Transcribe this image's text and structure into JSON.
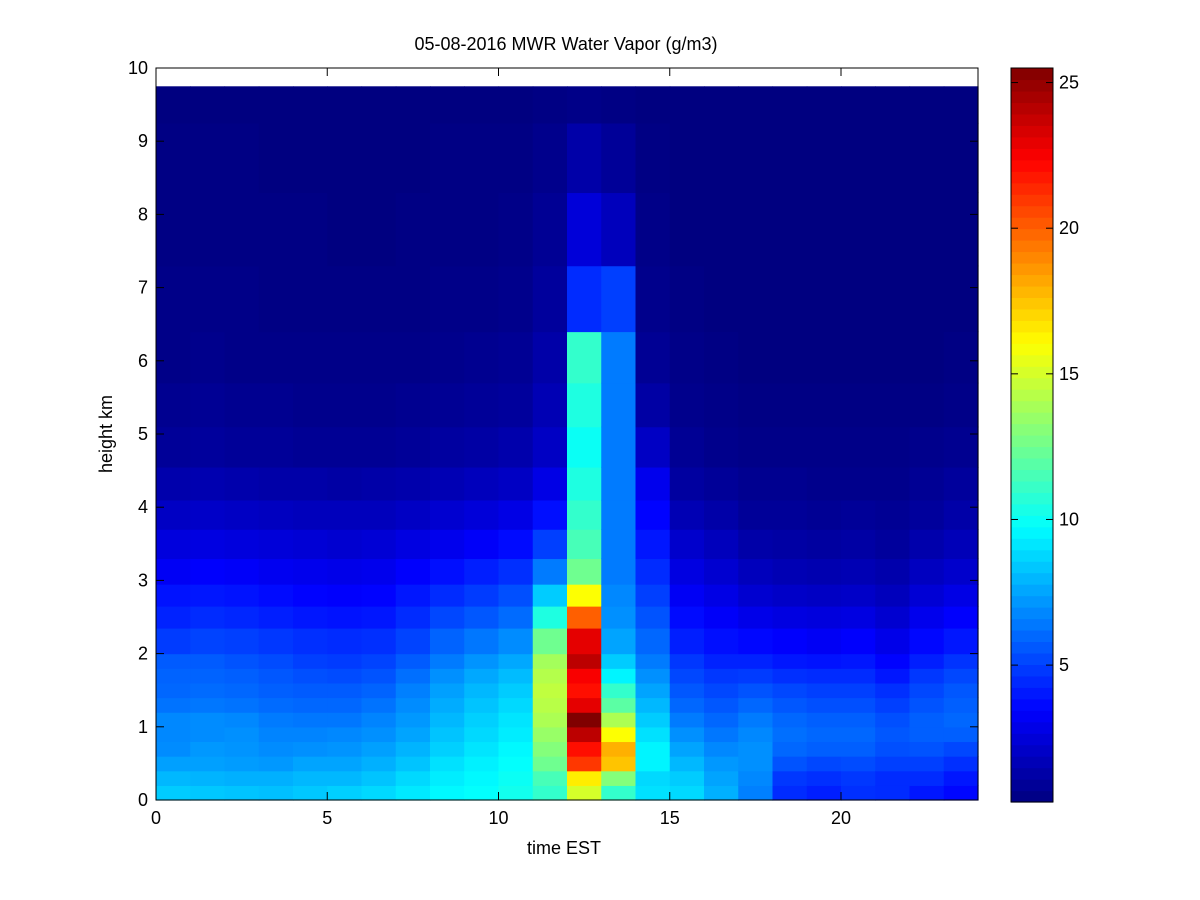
{
  "chart_data": {
    "type": "heatmap",
    "title": "05-08-2016 MWR Water Vapor (g/m3)",
    "xlabel": "time EST",
    "ylabel": "height km",
    "xlim": [
      0,
      24
    ],
    "ylim": [
      0,
      10
    ],
    "xticks": [
      0,
      5,
      10,
      15,
      20
    ],
    "yticks": [
      0,
      1,
      2,
      3,
      4,
      5,
      6,
      7,
      8,
      9,
      10
    ],
    "colormap": "jet",
    "colorbar": {
      "min": 0.3,
      "max": 25.5,
      "ticks": [
        5,
        10,
        15,
        20,
        25
      ]
    },
    "time_bins": [
      0,
      1,
      2,
      3,
      4,
      5,
      6,
      7,
      8,
      9,
      10,
      11,
      12,
      13,
      14,
      15,
      16,
      17,
      18,
      19,
      20,
      21,
      22,
      23
    ],
    "height_bins": [
      0.1,
      0.3,
      0.5,
      0.7,
      0.9,
      1.1,
      1.3,
      1.5,
      1.7,
      1.9,
      2.2,
      2.5,
      2.8,
      3.1,
      3.5,
      3.9,
      4.3,
      4.8,
      5.4,
      6.0,
      6.8,
      7.8,
      8.8,
      9.7
    ],
    "height_edges": [
      0,
      0.2,
      0.4,
      0.6,
      0.8,
      1.0,
      1.2,
      1.4,
      1.6,
      1.8,
      2.0,
      2.35,
      2.65,
      2.95,
      3.3,
      3.7,
      4.1,
      4.55,
      5.1,
      5.7,
      6.4,
      7.3,
      8.3,
      9.25,
      9.75
    ],
    "values": [
      [
        8.5,
        8.0,
        7.4,
        6.9,
        6.8,
        6.8,
        6.3,
        6.0,
        5.9,
        5.7,
        4.9,
        4.3,
        3.9,
        3.2,
        2.6,
        2.0,
        1.4,
        0.9,
        0.7,
        0.5,
        0.5,
        0.4,
        0.4,
        0.3
      ],
      [
        8.4,
        7.9,
        7.4,
        7.2,
        6.9,
        6.9,
        6.4,
        6.1,
        5.9,
        5.7,
        5.1,
        4.5,
        4.0,
        3.4,
        2.7,
        2.1,
        1.5,
        1.0,
        0.8,
        0.6,
        0.5,
        0.4,
        0.4,
        0.3
      ],
      [
        8.3,
        7.8,
        7.3,
        7.1,
        7.0,
        6.8,
        6.3,
        6.0,
        5.8,
        5.5,
        5.0,
        4.4,
        3.9,
        3.3,
        2.6,
        2.0,
        1.4,
        0.9,
        0.7,
        0.5,
        0.5,
        0.4,
        0.4,
        0.3
      ],
      [
        8.2,
        7.8,
        7.2,
        6.9,
        6.7,
        6.5,
        6.1,
        5.8,
        5.6,
        5.3,
        4.8,
        4.2,
        3.7,
        3.1,
        2.5,
        1.9,
        1.3,
        0.9,
        0.7,
        0.5,
        0.4,
        0.4,
        0.3,
        0.3
      ],
      [
        8.4,
        8.0,
        7.5,
        7.0,
        6.7,
        6.4,
        6.0,
        5.7,
        5.4,
        5.0,
        4.6,
        4.0,
        3.5,
        3.0,
        2.4,
        1.8,
        1.3,
        0.8,
        0.6,
        0.5,
        0.4,
        0.4,
        0.3,
        0.3
      ],
      [
        8.6,
        8.0,
        7.5,
        7.1,
        6.8,
        6.4,
        6.0,
        5.7,
        5.3,
        4.9,
        4.5,
        3.9,
        3.4,
        2.9,
        2.3,
        1.8,
        1.2,
        0.8,
        0.6,
        0.5,
        0.4,
        0.3,
        0.3,
        0.3
      ],
      [
        8.8,
        8.3,
        7.8,
        7.4,
        7.0,
        6.7,
        6.3,
        5.9,
        5.5,
        5.1,
        4.6,
        4.0,
        3.5,
        3.0,
        2.4,
        1.8,
        1.3,
        0.8,
        0.6,
        0.5,
        0.4,
        0.3,
        0.3,
        0.3
      ],
      [
        9.2,
        8.8,
        8.3,
        7.9,
        7.5,
        7.2,
        6.9,
        6.6,
        6.2,
        5.7,
        5.1,
        4.5,
        4.0,
        3.4,
        2.7,
        2.0,
        1.4,
        0.9,
        0.7,
        0.5,
        0.4,
        0.4,
        0.3,
        0.3
      ],
      [
        9.6,
        9.3,
        9.0,
        8.6,
        8.3,
        8.0,
        7.7,
        7.4,
        7.0,
        6.5,
        5.9,
        5.2,
        4.5,
        3.8,
        3.0,
        2.3,
        1.6,
        1.1,
        0.8,
        0.6,
        0.5,
        0.4,
        0.4,
        0.3
      ],
      [
        9.8,
        9.6,
        9.4,
        9.1,
        8.8,
        8.6,
        8.3,
        8.0,
        7.6,
        7.1,
        6.4,
        5.6,
        4.9,
        4.2,
        3.3,
        2.5,
        1.8,
        1.2,
        0.9,
        0.7,
        0.5,
        0.4,
        0.4,
        0.3
      ],
      [
        10.2,
        10.0,
        9.8,
        9.6,
        9.3,
        9.1,
        8.8,
        8.5,
        8.1,
        7.6,
        6.9,
        6.1,
        5.4,
        4.6,
        3.7,
        2.8,
        2.0,
        1.4,
        1.0,
        0.8,
        0.6,
        0.5,
        0.4,
        0.3
      ],
      [
        11.0,
        11.5,
        12.5,
        13.0,
        13.5,
        14.0,
        14.3,
        14.5,
        14.2,
        13.8,
        12.5,
        10.5,
        8.5,
        6.5,
        5.0,
        3.8,
        2.8,
        2.0,
        1.6,
        1.3,
        1.0,
        0.8,
        0.6,
        0.4
      ],
      [
        15.0,
        16.5,
        21.0,
        22.0,
        24.0,
        25.5,
        23.0,
        22.0,
        22.5,
        24.0,
        23.0,
        20.0,
        16.0,
        12.5,
        11.5,
        11.0,
        10.5,
        10.0,
        10.5,
        11.0,
        4.5,
        2.5,
        1.3,
        0.5
      ],
      [
        11.0,
        13.0,
        17.5,
        18.0,
        16.0,
        14.0,
        12.0,
        11.0,
        9.5,
        8.5,
        7.5,
        7.0,
        6.8,
        6.5,
        6.5,
        6.5,
        6.5,
        6.5,
        6.5,
        6.5,
        5.0,
        1.8,
        0.9,
        0.4
      ],
      [
        9.0,
        8.8,
        9.5,
        9.5,
        9.0,
        8.5,
        8.0,
        7.5,
        7.0,
        6.5,
        6.0,
        5.5,
        5.0,
        4.5,
        4.0,
        3.5,
        3.0,
        2.0,
        1.2,
        0.8,
        0.6,
        0.5,
        0.4,
        0.3
      ],
      [
        8.8,
        8.5,
        8.0,
        7.5,
        7.0,
        6.5,
        6.0,
        5.6,
        5.2,
        4.8,
        4.2,
        3.7,
        3.2,
        2.7,
        2.2,
        1.6,
        1.1,
        0.8,
        0.6,
        0.5,
        0.4,
        0.3,
        0.3,
        0.3
      ],
      [
        7.8,
        7.5,
        7.2,
        6.8,
        6.4,
        6.0,
        5.6,
        5.2,
        4.8,
        4.3,
        3.8,
        3.3,
        2.8,
        2.3,
        1.8,
        1.3,
        0.9,
        0.6,
        0.5,
        0.4,
        0.3,
        0.3,
        0.3,
        0.3
      ],
      [
        6.6,
        6.8,
        7.0,
        7.0,
        6.8,
        6.5,
        6.0,
        5.5,
        4.9,
        4.3,
        3.6,
        2.9,
        2.3,
        1.8,
        1.3,
        0.9,
        0.7,
        0.5,
        0.4,
        0.3,
        0.3,
        0.3,
        0.3,
        0.3
      ],
      [
        4.5,
        4.8,
        5.5,
        6.0,
        6.2,
        6.0,
        5.6,
        5.2,
        4.6,
        4.0,
        3.4,
        2.7,
        2.1,
        1.6,
        1.2,
        0.9,
        0.7,
        0.5,
        0.4,
        0.3,
        0.3,
        0.3,
        0.3,
        0.3
      ],
      [
        4.2,
        4.6,
        5.2,
        5.8,
        6.0,
        5.8,
        5.4,
        5.0,
        4.5,
        3.9,
        3.2,
        2.6,
        2.0,
        1.5,
        1.1,
        0.8,
        0.6,
        0.5,
        0.4,
        0.3,
        0.3,
        0.3,
        0.3,
        0.3
      ],
      [
        4.6,
        4.8,
        5.3,
        5.8,
        6.0,
        5.8,
        5.4,
        5.0,
        4.5,
        4.0,
        3.4,
        2.7,
        2.1,
        1.6,
        1.2,
        0.9,
        0.6,
        0.5,
        0.4,
        0.3,
        0.3,
        0.3,
        0.3,
        0.3
      ],
      [
        4.5,
        4.5,
        5.0,
        5.4,
        5.6,
        5.4,
        5.0,
        4.6,
        4.0,
        3.5,
        2.9,
        2.3,
        1.8,
        1.4,
        1.0,
        0.8,
        0.6,
        0.5,
        0.4,
        0.3,
        0.3,
        0.3,
        0.3,
        0.3
      ],
      [
        4.0,
        4.5,
        5.0,
        5.5,
        5.8,
        5.8,
        5.5,
        5.2,
        4.8,
        4.2,
        3.6,
        3.0,
        2.4,
        1.9,
        1.4,
        1.0,
        0.8,
        0.6,
        0.4,
        0.3,
        0.3,
        0.3,
        0.3,
        0.3
      ],
      [
        3.6,
        4.0,
        4.6,
        5.2,
        5.8,
        6.0,
        5.8,
        5.6,
        5.2,
        4.7,
        4.0,
        3.4,
        2.8,
        2.2,
        1.7,
        1.3,
        1.0,
        0.7,
        0.5,
        0.4,
        0.3,
        0.3,
        0.3,
        0.3
      ]
    ]
  }
}
